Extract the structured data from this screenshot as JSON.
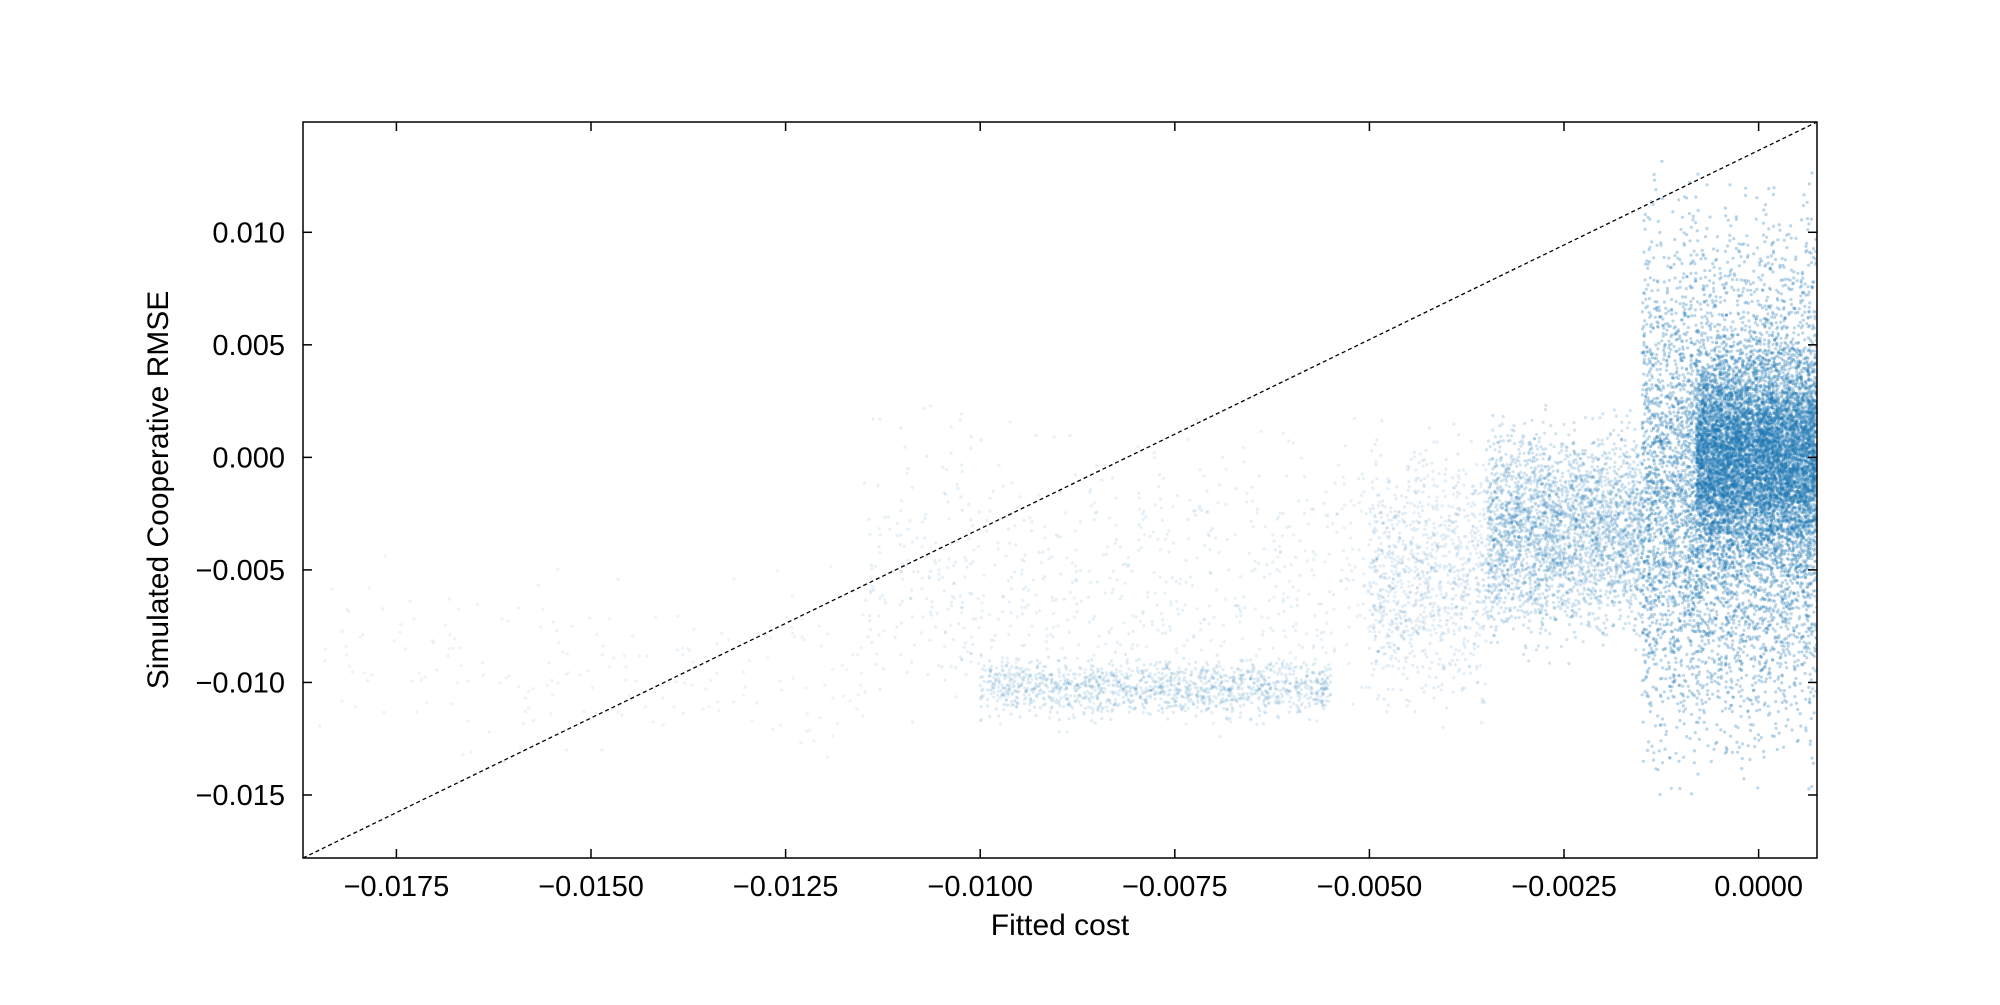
{
  "chart_data": {
    "type": "scatter",
    "title": "",
    "xlabel": "Fitted cost",
    "ylabel": "Simulated Cooperative RMSE",
    "xlim": [
      -0.0187,
      0.00075
    ],
    "ylim": [
      -0.0178,
      0.0149
    ],
    "xticks": [
      -0.0175,
      -0.015,
      -0.0125,
      -0.01,
      -0.0075,
      -0.005,
      -0.0025,
      0.0
    ],
    "xtick_labels": [
      "−0.0175",
      "−0.0150",
      "−0.0125",
      "−0.0100",
      "−0.0075",
      "−0.0050",
      "−0.0025",
      "0.0000"
    ],
    "yticks": [
      -0.015,
      -0.01,
      -0.005,
      0.0,
      0.005,
      0.01
    ],
    "ytick_labels": [
      "−0.015",
      "−0.010",
      "−0.005",
      "0.000",
      "0.005",
      "0.010"
    ],
    "grid": false,
    "legend": "none",
    "tick_direction": "in",
    "ticks_on_all_sides": true,
    "point_color": "#1f77b4",
    "reference_line": {
      "style": "dashed",
      "color": "#000000",
      "x": [
        -0.0187,
        0.00075
      ],
      "y": [
        -0.0178,
        0.0149
      ]
    },
    "density_regions": [
      {
        "x_range": [
          -0.0185,
          -0.0115
        ],
        "y_range": [
          -0.015,
          -0.0035
        ],
        "relative_density": 0.04
      },
      {
        "x_range": [
          -0.0115,
          -0.005
        ],
        "y_range": [
          -0.014,
          0.0035
        ],
        "relative_density": 0.15
      },
      {
        "x_range": [
          -0.01,
          -0.0055
        ],
        "y_range": [
          -0.012,
          -0.0085
        ],
        "relative_density": 0.25
      },
      {
        "x_range": [
          -0.005,
          -0.0035
        ],
        "y_range": [
          -0.013,
          0.0025
        ],
        "relative_density": 0.2
      },
      {
        "x_range": [
          -0.0035,
          -0.0015
        ],
        "y_range": [
          -0.0095,
          0.003
        ],
        "relative_density": 0.55
      },
      {
        "x_range": [
          -0.0015,
          0.00075
        ],
        "y_range": [
          -0.016,
          0.014
        ],
        "relative_density": 1.0
      },
      {
        "x_range": [
          -0.0008,
          0.00075
        ],
        "y_range": [
          -0.006,
          0.006
        ],
        "relative_density": 1.0
      }
    ]
  }
}
